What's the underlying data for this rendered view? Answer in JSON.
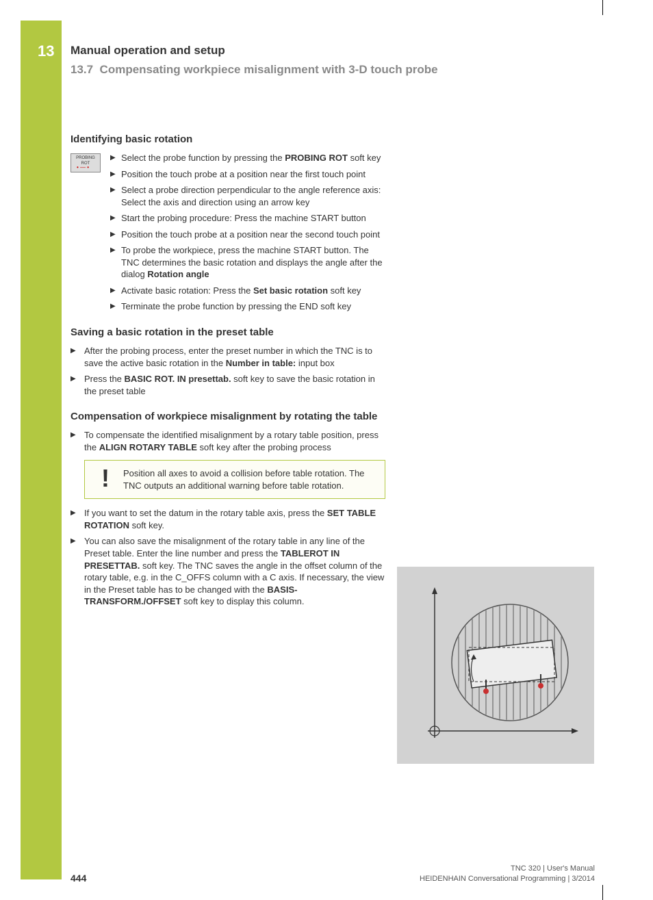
{
  "chapter": {
    "num": "13",
    "title": "Manual operation and setup"
  },
  "section": {
    "num": "13.7",
    "title": "Compensating workpiece misalignment with 3-D touch probe"
  },
  "softkey_icon": {
    "line1": "PROBING",
    "line2": "ROT"
  },
  "sub1": {
    "heading": "Identifying basic rotation",
    "steps": [
      {
        "pre": "Select the probe function by pressing the ",
        "bold": "PROBING ROT",
        "post": " soft key"
      },
      {
        "pre": "Position the touch probe at a position near the first touch point"
      },
      {
        "pre": "Select a probe direction perpendicular to the angle reference axis: Select the axis and direction using an arrow key"
      },
      {
        "pre": "Start the probing procedure: Press the machine START button"
      },
      {
        "pre": "Position the touch probe at a position near the second touch point"
      },
      {
        "pre": "To probe the workpiece, press the machine START button. The TNC determines the basic rotation and displays the angle after the dialog ",
        "bold": "Rotation angle"
      },
      {
        "pre": "Activate basic rotation: Press the ",
        "bold": "Set basic rotation",
        "post": " soft key"
      },
      {
        "pre": "Terminate the probe function by pressing the END soft key"
      }
    ]
  },
  "sub2": {
    "heading": "Saving a basic rotation in the preset table",
    "steps": [
      {
        "pre": "After the probing process, enter the preset number in which the TNC is to save the active basic rotation in the ",
        "bold": "Number in table:",
        "post": " input box"
      },
      {
        "pre": "Press the ",
        "bold": "BASIC ROT. IN presettab.",
        "post": " soft key to save the basic rotation in the preset table"
      }
    ]
  },
  "sub3": {
    "heading": "Compensation of workpiece misalignment by rotating the table",
    "step_a": {
      "pre": "To compensate the identified misalignment by a rotary table position, press the ",
      "bold": "ALIGN ROTARY TABLE",
      "post": " soft key after the probing process"
    },
    "warning": "Position all axes to avoid a collision before table rotation. The TNC outputs an additional warning before table rotation.",
    "step_b": {
      "pre": "If you want to set the datum in the rotary table axis, press the ",
      "bold": "SET TABLE ROTATION",
      "post": " soft key."
    },
    "step_c": {
      "pre": "You can also save the misalignment of the rotary table in any line of the Preset table. Enter the line number and press the ",
      "bold1": "TABLEROT IN PRESETTAB.",
      "mid": " soft key. The TNC saves the angle in the offset column of the rotary table, e.g. in the C_OFFS column with a C axis. If necessary, the view in the Preset table has to be changed with the ",
      "bold2": "BASIS-TRANSFORM./OFFSET",
      "post": " soft key to display this column."
    }
  },
  "footer": {
    "page": "444",
    "line1": "TNC 320 | User's Manual",
    "line2": "HEIDENHAIN Conversational Programming | 3/2014"
  },
  "colors": {
    "accent": "#b2c841",
    "section_gray": "#888888",
    "text": "#333333",
    "diagram_bg": "#d2d2d2"
  }
}
